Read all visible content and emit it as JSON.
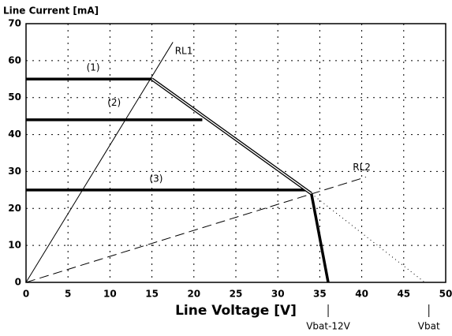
{
  "chart_data": {
    "type": "line",
    "ylabel": "Line Current [mA]",
    "xlabel": "Line Voltage [V]",
    "xlim": [
      0,
      50
    ],
    "ylim": [
      0,
      70
    ],
    "xticks": [
      0,
      5,
      10,
      15,
      20,
      25,
      30,
      35,
      40,
      45,
      50
    ],
    "yticks": [
      0,
      10,
      20,
      30,
      40,
      50,
      60,
      70
    ],
    "grid": true,
    "series": [
      {
        "name": "(1)",
        "color": "#000000",
        "style": "solid",
        "width": 3.5,
        "x": [
          0,
          15
        ],
        "values": [
          55,
          55
        ]
      },
      {
        "name": "(2)",
        "color": "#000000",
        "style": "solid",
        "width": 3.5,
        "x": [
          0,
          21
        ],
        "values": [
          44,
          44
        ]
      },
      {
        "name": "(3)",
        "color": "#000000",
        "style": "solid",
        "width": 3.5,
        "x": [
          0,
          33.5
        ],
        "values": [
          25,
          25
        ]
      },
      {
        "name": "RL1",
        "color": "#000000",
        "style": "solid",
        "width": 1,
        "x": [
          0,
          17.5
        ],
        "values": [
          0,
          65
        ]
      },
      {
        "name": "RL2",
        "color": "#000000",
        "style": "dashed",
        "width": 1,
        "x": [
          0,
          40.5
        ],
        "values": [
          0,
          28.5
        ]
      },
      {
        "color": "#000000",
        "style": "double",
        "width": 4,
        "x": [
          15,
          34
        ],
        "values": [
          55,
          24
        ]
      },
      {
        "color": "#000000",
        "style": "solid",
        "width": 3.5,
        "x": [
          34,
          36
        ],
        "values": [
          24,
          0
        ]
      },
      {
        "color": "#000000",
        "style": "dotted",
        "width": 1,
        "x": [
          34,
          47.5
        ],
        "values": [
          24,
          0
        ]
      }
    ],
    "x_markers": [
      {
        "value": 36,
        "label": "Vbat-12V"
      },
      {
        "value": 48,
        "label": "Vbat"
      }
    ]
  }
}
